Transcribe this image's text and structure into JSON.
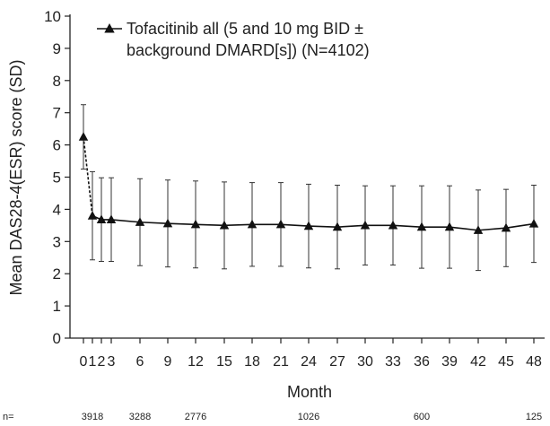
{
  "chart_data": {
    "type": "line",
    "xlabel": "Month",
    "ylabel": "Mean DAS28-4(ESR) score (SD)",
    "ylim": [
      0,
      10
    ],
    "yticks": [
      0,
      1,
      2,
      3,
      4,
      5,
      6,
      7,
      8,
      9,
      10
    ],
    "xticks": [
      0,
      1,
      2,
      3,
      6,
      9,
      12,
      15,
      18,
      21,
      24,
      27,
      30,
      33,
      36,
      39,
      42,
      45,
      48
    ],
    "grid": false,
    "legend_position": "top-left",
    "marker": "triangle",
    "series": [
      {
        "name": "Tofacitinib all (5 and 10 mg BID ± background DMARD[s]) (N=4102)",
        "legend_lines": [
          "Tofacitinib all (5 and 10 mg BID ±",
          "background DMARD[s]) (N=4102)"
        ],
        "x": [
          0,
          1,
          2,
          3,
          6,
          9,
          12,
          15,
          18,
          21,
          24,
          27,
          30,
          33,
          36,
          39,
          42,
          45,
          48
        ],
        "mean": [
          6.25,
          3.8,
          3.68,
          3.68,
          3.6,
          3.56,
          3.53,
          3.5,
          3.53,
          3.53,
          3.48,
          3.45,
          3.5,
          3.5,
          3.45,
          3.45,
          3.35,
          3.42,
          3.55
        ],
        "sd": [
          1.0,
          1.37,
          1.3,
          1.3,
          1.35,
          1.35,
          1.35,
          1.35,
          1.3,
          1.3,
          1.3,
          1.3,
          1.23,
          1.23,
          1.28,
          1.28,
          1.25,
          1.2,
          1.2
        ],
        "baseline_segment_style": "dashed"
      }
    ],
    "n_label": "n=",
    "n_at_risk": [
      {
        "x": 1,
        "n": "3918"
      },
      {
        "x": 6,
        "n": "3288"
      },
      {
        "x": 12,
        "n": "2776"
      },
      {
        "x": 24,
        "n": "1026"
      },
      {
        "x": 36,
        "n": "600"
      },
      {
        "x": 48,
        "n": "125"
      }
    ]
  }
}
